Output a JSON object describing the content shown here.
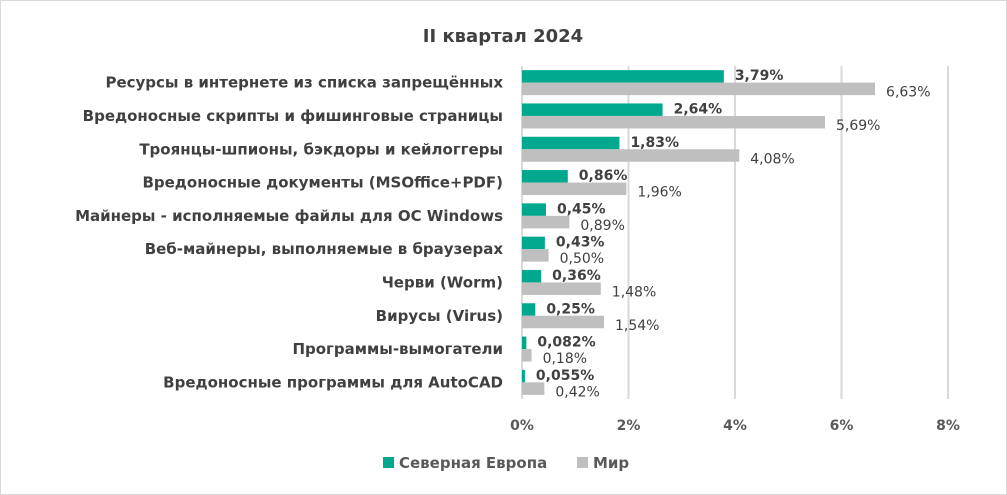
{
  "chart_data": {
    "type": "bar",
    "orientation": "horizontal",
    "title": "II квартал 2024",
    "categories": [
      "Ресурсы в интернете из списка запрещённых",
      "Вредоносные скрипты и фишинговые страницы",
      "Троянцы-шпионы, бэкдоры и кейлоггеры",
      "Вредоносные документы (MSOffice+PDF)",
      "Майнеры - исполняемые файлы для ОС Windows",
      "Веб-майнеры, выполняемые в браузерах",
      "Черви (Worm)",
      "Вирусы (Virus)",
      "Программы-вымогатели",
      "Вредоносные программы для AutoCAD"
    ],
    "series": [
      {
        "name": "Северная Европа",
        "color": "#00a88e",
        "values": [
          3.79,
          2.64,
          1.83,
          0.86,
          0.45,
          0.43,
          0.36,
          0.25,
          0.082,
          0.055
        ],
        "labels": [
          "3,79%",
          "2,64%",
          "1,83%",
          "0,86%",
          "0,45%",
          "0,43%",
          "0,36%",
          "0,25%",
          "0,082%",
          "0,055%"
        ]
      },
      {
        "name": "Мир",
        "color": "#bfbfbf",
        "values": [
          6.63,
          5.69,
          4.08,
          1.96,
          0.89,
          0.5,
          1.48,
          1.54,
          0.18,
          0.42
        ],
        "labels": [
          "6,63%",
          "5,69%",
          "4,08%",
          "1,96%",
          "0,89%",
          "0,50%",
          "1,48%",
          "1,54%",
          "0,18%",
          "0,42%"
        ]
      }
    ],
    "xlim": [
      0,
      8
    ],
    "xticks": [
      0,
      2,
      4,
      6,
      8
    ],
    "xtick_labels": [
      "0%",
      "2%",
      "4%",
      "6%",
      "8%"
    ],
    "grid": true,
    "legend": "bottom"
  }
}
